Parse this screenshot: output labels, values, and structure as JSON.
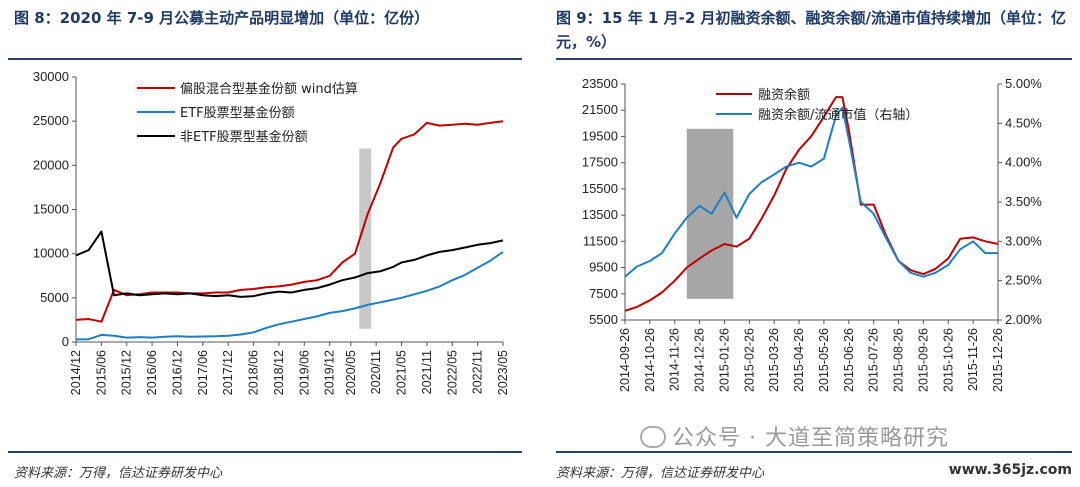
{
  "left": {
    "title": "图 8：2020 年 7-9 月公募主动产品明显增加（单位：亿份）",
    "source": "资料来源：万得，信达证券研发中心"
  },
  "right": {
    "title": "图 9：15 年 1 月-2 月初融资余额、融资余额/流通市值持续增加（单位：亿元，%）",
    "source": "资料来源：万得，信达证券研发中心"
  },
  "watermark": "公众号 · 大道至简策略研究",
  "site": "www.365jz.com",
  "chart_data": [
    {
      "type": "line",
      "x": [
        "2014/12",
        "2015/03",
        "2015/06",
        "2015/09",
        "2015/12",
        "2016/03",
        "2016/06",
        "2016/09",
        "2016/12",
        "2017/03",
        "2017/06",
        "2017/09",
        "2017/12",
        "2018/03",
        "2018/06",
        "2018/09",
        "2018/12",
        "2019/03",
        "2019/06",
        "2019/09",
        "2019/12",
        "2020/03",
        "2020/06",
        "2020/09",
        "2020/12",
        "2021/03",
        "2021/05",
        "2021/08",
        "2021/11",
        "2022/02",
        "2022/05",
        "2022/08",
        "2022/11",
        "2023/02",
        "2023/05"
      ],
      "xticks": [
        "2014/12",
        "2015/06",
        "2015/12",
        "2016/06",
        "2016/12",
        "2017/06",
        "2017/12",
        "2018/06",
        "2018/12",
        "2019/06",
        "2019/12",
        "2020/05",
        "2020/11",
        "2021/05",
        "2021/11",
        "2022/05",
        "2022/11",
        "2023/05"
      ],
      "series": [
        {
          "name": "偏股混合型基金份额 wind估算",
          "color": "#c00000",
          "values": [
            2500,
            2600,
            2300,
            5900,
            5300,
            5400,
            5600,
            5600,
            5600,
            5500,
            5500,
            5600,
            5600,
            5900,
            6000,
            6200,
            6300,
            6500,
            6800,
            7000,
            7500,
            9000,
            10000,
            14500,
            18000,
            22000,
            23000,
            23500,
            24800,
            24500,
            24600,
            24700,
            24600,
            24800,
            25000
          ]
        },
        {
          "name": "ETF股票型基金份额",
          "color": "#1f7fc0",
          "values": [
            300,
            320,
            800,
            700,
            500,
            550,
            500,
            600,
            650,
            600,
            620,
            650,
            700,
            850,
            1100,
            1600,
            2000,
            2300,
            2600,
            2900,
            3300,
            3500,
            3800,
            4200,
            4500,
            4800,
            5000,
            5400,
            5800,
            6300,
            7000,
            7600,
            8400,
            9200,
            10200
          ]
        },
        {
          "name": "非ETF股票型基金份额",
          "color": "#000000",
          "values": [
            9800,
            10400,
            12500,
            5300,
            5500,
            5300,
            5400,
            5500,
            5400,
            5500,
            5300,
            5200,
            5300,
            5100,
            5200,
            5500,
            5700,
            5600,
            5900,
            6100,
            6500,
            7000,
            7300,
            7800,
            8000,
            8500,
            9000,
            9300,
            9800,
            10200,
            10400,
            10700,
            11000,
            11200,
            11500
          ]
        }
      ],
      "ylim": [
        0,
        30000
      ],
      "yticks": [
        0,
        5000,
        10000,
        15000,
        20000,
        25000,
        30000
      ],
      "highlight": {
        "from": "2020/07",
        "to": "2020/09"
      },
      "grid": false,
      "legend": "top-left"
    },
    {
      "type": "line",
      "x": [
        "2014-09-26",
        "2014-10-10",
        "2014-10-26",
        "2014-11-10",
        "2014-11-26",
        "2014-12-10",
        "2014-12-26",
        "2015-01-10",
        "2015-01-26",
        "2015-02-10",
        "2015-02-26",
        "2015-03-10",
        "2015-03-26",
        "2015-04-10",
        "2015-04-26",
        "2015-05-10",
        "2015-05-26",
        "2015-06-10",
        "2015-06-18",
        "2015-06-26",
        "2015-07-10",
        "2015-07-26",
        "2015-08-10",
        "2015-08-26",
        "2015-09-10",
        "2015-09-26",
        "2015-10-10",
        "2015-10-26",
        "2015-11-10",
        "2015-11-26",
        "2015-12-10",
        "2015-12-26"
      ],
      "xticks": [
        "2014-09-26",
        "2014-10-26",
        "2014-11-26",
        "2014-12-26",
        "2015-01-26",
        "2015-02-26",
        "2015-03-26",
        "2015-04-26",
        "2015-05-26",
        "2015-06-26",
        "2015-07-26",
        "2015-08-26",
        "2015-09-26",
        "2015-10-26",
        "2015-11-26",
        "2015-12-26"
      ],
      "series": [
        {
          "name": "融资余额",
          "color": "#c00000",
          "axis": "left",
          "values": [
            6200,
            6500,
            7000,
            7600,
            8500,
            9500,
            10200,
            10800,
            11300,
            11100,
            11700,
            13200,
            15000,
            17000,
            18500,
            19500,
            21000,
            22500,
            22500,
            20000,
            14300,
            14300,
            12000,
            10000,
            9300,
            9000,
            9400,
            10200,
            11700,
            11800,
            11500,
            11300
          ]
        },
        {
          "name": "融资余额/流通市值（右轴）",
          "color": "#1f7fc0",
          "axis": "right",
          "values": [
            2.55,
            2.68,
            2.75,
            2.85,
            3.1,
            3.3,
            3.45,
            3.35,
            3.62,
            3.3,
            3.6,
            3.75,
            3.85,
            3.95,
            4.0,
            3.95,
            4.05,
            4.6,
            4.7,
            4.3,
            3.5,
            3.35,
            3.05,
            2.75,
            2.6,
            2.55,
            2.6,
            2.7,
            2.9,
            3.0,
            2.85,
            2.85
          ]
        }
      ],
      "ylim": [
        5500,
        23500
      ],
      "yticks": [
        5500,
        7500,
        9500,
        11500,
        13500,
        15500,
        17500,
        19500,
        21500,
        23500
      ],
      "y2lim": [
        2.0,
        5.0
      ],
      "y2ticks": [
        "2.00%",
        "2.50%",
        "3.00%",
        "3.50%",
        "4.00%",
        "4.50%",
        "5.00%"
      ],
      "highlight": {
        "from": "2014-12-10",
        "to": "2015-02-06"
      },
      "grid": false,
      "legend": "top-left"
    }
  ]
}
